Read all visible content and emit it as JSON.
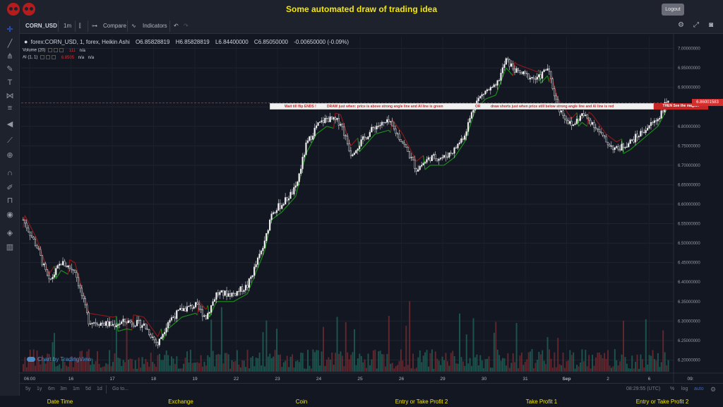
{
  "app": {
    "title": "Some automated draw of trading idea",
    "logout_label": "Logout"
  },
  "toolbar": {
    "symbol": "CORN_USD",
    "interval": "1m",
    "compare_label": "Compare",
    "indicators_label": "Indicators"
  },
  "legend": {
    "title": "forex:CORN_USD, 1, forex, Heikin Ashi",
    "open": "O6.85828819",
    "high": "H6.85828819",
    "low": "L6.84400000",
    "close": "C6.85050000",
    "change": "-0.00650000 (-0.09%)",
    "volume_label": "Volume (20)",
    "volume_value": "111",
    "volume_na": "n/a",
    "ai_label": "AI (1, 1)",
    "ai_value": "6.8505",
    "ai_na1": "n/a",
    "ai_na2": "n/a"
  },
  "banner": {
    "part1": "Wait till flip ENDS  !",
    "part2": "DRAW just when:  price is above strong angle line and AI line is green",
    "part3": "OR",
    "part4": "draw shorts just when price still below strong angle line and AI line is red",
    "end": "THEN See the magic!!",
    "price_tag": "6.86001583"
  },
  "price_axis": [
    "7.00000000",
    "6.95000000",
    "6.90000000",
    "6.85000000",
    "6.80000000",
    "6.75000000",
    "6.70000000",
    "6.65000000",
    "6.60000000",
    "6.55000000",
    "6.50000000",
    "6.45000000",
    "6.40000000",
    "6.35000000",
    "6.30000000",
    "6.25000000",
    "6.20000000"
  ],
  "time_axis": [
    "06:00",
    "16",
    "17",
    "18",
    "19",
    "22",
    "23",
    "24",
    "25",
    "26",
    "29",
    "30",
    "31",
    "Sep",
    "2",
    "6",
    "09:"
  ],
  "watermark": "Chart by TradingView",
  "ranges": [
    "5y",
    "1y",
    "6m",
    "3m",
    "1m",
    "5d",
    "1d"
  ],
  "goto_label": "Go to...",
  "clock": "08:29:55 (UTC)",
  "scale_opts": {
    "pct": "%",
    "log": "log",
    "auto": "auto"
  },
  "footer": [
    "Date Time",
    "Exchange",
    "Coin",
    "Entry or Take Profit 2",
    "Take Profit 1",
    "Entry or Take Profit 2"
  ],
  "colors": {
    "accent_yellow": "#f5e609",
    "up": "#26a69a",
    "down": "#ef5350",
    "ai_green": "#1b8f1b",
    "ai_red": "#8b1a1a"
  },
  "chart_data": {
    "type": "candlestick",
    "style": "Heikin Ashi",
    "ylim": [
      6.17,
      7.03
    ],
    "guide_price": 6.86,
    "keypoints": [
      [
        0,
        6.56
      ],
      [
        8,
        6.49
      ],
      [
        15,
        6.4
      ],
      [
        22,
        6.45
      ],
      [
        30,
        6.43
      ],
      [
        38,
        6.3
      ],
      [
        52,
        6.29
      ],
      [
        60,
        6.3
      ],
      [
        70,
        6.29
      ],
      [
        78,
        6.24
      ],
      [
        84,
        6.3
      ],
      [
        92,
        6.33
      ],
      [
        100,
        6.34
      ],
      [
        106,
        6.31
      ],
      [
        112,
        6.37
      ],
      [
        122,
        6.37
      ],
      [
        130,
        6.39
      ],
      [
        140,
        6.5
      ],
      [
        144,
        6.58
      ],
      [
        150,
        6.6
      ],
      [
        158,
        6.64
      ],
      [
        164,
        6.75
      ],
      [
        170,
        6.8
      ],
      [
        176,
        6.82
      ],
      [
        184,
        6.81
      ],
      [
        190,
        6.73
      ],
      [
        196,
        6.76
      ],
      [
        204,
        6.8
      ],
      [
        212,
        6.81
      ],
      [
        220,
        6.76
      ],
      [
        228,
        6.69
      ],
      [
        236,
        6.72
      ],
      [
        244,
        6.72
      ],
      [
        250,
        6.74
      ],
      [
        256,
        6.78
      ],
      [
        262,
        6.86
      ],
      [
        268,
        6.89
      ],
      [
        274,
        6.9
      ],
      [
        280,
        6.97
      ],
      [
        286,
        6.94
      ],
      [
        292,
        6.93
      ],
      [
        298,
        6.92
      ],
      [
        304,
        6.95
      ],
      [
        310,
        6.85
      ],
      [
        318,
        6.8
      ],
      [
        324,
        6.83
      ],
      [
        330,
        6.81
      ],
      [
        338,
        6.76
      ],
      [
        344,
        6.74
      ],
      [
        352,
        6.76
      ],
      [
        360,
        6.79
      ],
      [
        368,
        6.82
      ],
      [
        374,
        6.87
      ]
    ],
    "n_candles": 375
  }
}
